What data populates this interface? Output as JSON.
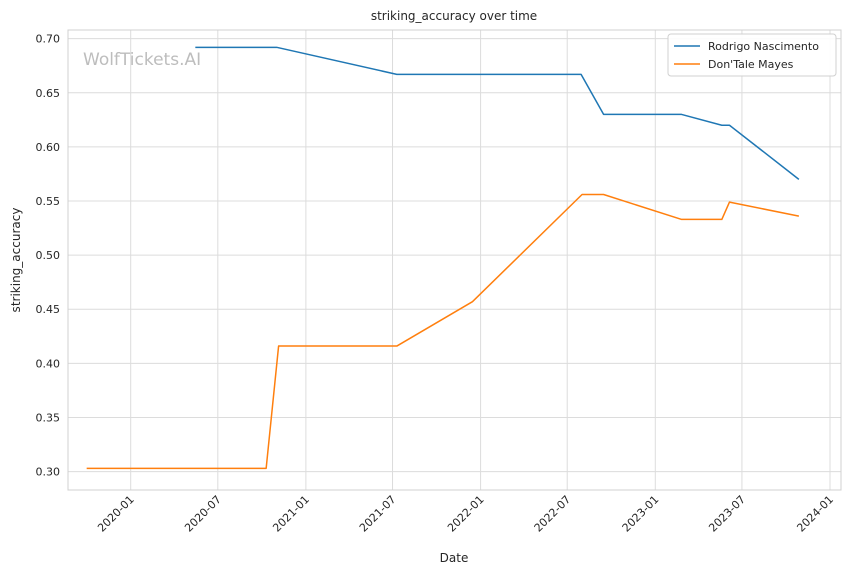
{
  "chart_data": {
    "type": "line",
    "title": "striking_accuracy over time",
    "xlabel": "Date",
    "ylabel": "striking_accuracy",
    "watermark": "WolfTickets.AI",
    "x_ticks": [
      "2020-01",
      "2020-07",
      "2021-01",
      "2021-07",
      "2022-01",
      "2022-07",
      "2023-01",
      "2023-07",
      "2024-01"
    ],
    "y_ticks": [
      "0.30",
      "0.35",
      "0.40",
      "0.45",
      "0.50",
      "0.55",
      "0.60",
      "0.65",
      "0.70"
    ],
    "xlim": [
      "2019-08-23",
      "2024-01-24"
    ],
    "ylim": [
      0.283,
      0.708
    ],
    "grid": true,
    "legend_position": "top-right",
    "series": [
      {
        "name": "Rodrigo Nascimento",
        "color": "#1f77b4",
        "points": [
          {
            "x": "2020-05-15",
            "y": 0.692
          },
          {
            "x": "2020-11-01",
            "y": 0.692
          },
          {
            "x": "2021-07-10",
            "y": 0.667
          },
          {
            "x": "2022-07-30",
            "y": 0.667
          },
          {
            "x": "2022-09-15",
            "y": 0.63
          },
          {
            "x": "2023-02-25",
            "y": 0.63
          },
          {
            "x": "2023-05-20",
            "y": 0.62
          },
          {
            "x": "2023-06-05",
            "y": 0.62
          },
          {
            "x": "2023-10-28",
            "y": 0.57
          }
        ]
      },
      {
        "name": "Don'Tale Mayes",
        "color": "#ff7f0e",
        "points": [
          {
            "x": "2019-10-01",
            "y": 0.303
          },
          {
            "x": "2020-10-10",
            "y": 0.303
          },
          {
            "x": "2020-11-05",
            "y": 0.416
          },
          {
            "x": "2021-07-10",
            "y": 0.416
          },
          {
            "x": "2021-12-15",
            "y": 0.457
          },
          {
            "x": "2022-08-01",
            "y": 0.556
          },
          {
            "x": "2022-09-15",
            "y": 0.556
          },
          {
            "x": "2023-02-25",
            "y": 0.533
          },
          {
            "x": "2023-05-20",
            "y": 0.533
          },
          {
            "x": "2023-06-05",
            "y": 0.549
          },
          {
            "x": "2023-10-28",
            "y": 0.536
          }
        ]
      }
    ]
  }
}
